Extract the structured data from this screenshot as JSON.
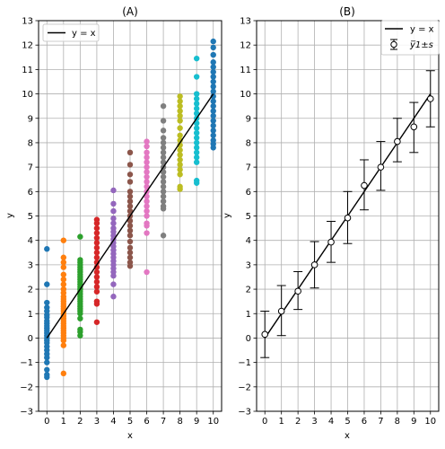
{
  "chart_data": [
    {
      "type": "scatter",
      "title": "(A)",
      "xlabel": "x",
      "ylabel": "y",
      "xlim": [
        -0.5,
        10.5
      ],
      "ylim": [
        -3,
        13
      ],
      "xticks": [
        0,
        1,
        2,
        3,
        4,
        5,
        6,
        7,
        8,
        9,
        10
      ],
      "yticks": [
        -3,
        -2,
        -1,
        0,
        1,
        2,
        3,
        4,
        5,
        6,
        7,
        8,
        9,
        10,
        11,
        12,
        13
      ],
      "grid": true,
      "legend": {
        "placement": "top-left",
        "entries": [
          "y = x"
        ]
      },
      "reference_line": {
        "label": "y = x",
        "x": [
          0,
          10
        ],
        "y": [
          0,
          10
        ],
        "color": "#000000"
      },
      "series": [
        {
          "x": 0,
          "color": "#1f77b4",
          "values": [
            3.65,
            2.2,
            1.45,
            1.25,
            1.1,
            0.95,
            0.85,
            0.7,
            0.6,
            0.5,
            0.4,
            0.3,
            0.2,
            0.1,
            0.0,
            -0.1,
            -0.2,
            -0.35,
            -0.5,
            -0.65,
            -0.8,
            -1.0,
            -1.3,
            -1.5,
            -1.6
          ]
        },
        {
          "x": 1,
          "color": "#ff7f0e",
          "values": [
            4.0,
            3.3,
            3.1,
            2.9,
            2.6,
            2.4,
            2.2,
            2.0,
            1.85,
            1.7,
            1.6,
            1.5,
            1.4,
            1.3,
            1.2,
            1.1,
            1.0,
            0.9,
            0.8,
            0.7,
            0.6,
            0.5,
            0.4,
            0.3,
            0.2,
            0.1,
            0.0,
            -0.1,
            -0.3,
            -1.45
          ]
        },
        {
          "x": 2,
          "color": "#2ca02c",
          "values": [
            4.15,
            3.2,
            3.1,
            3.0,
            2.9,
            2.8,
            2.7,
            2.6,
            2.5,
            2.4,
            2.3,
            2.2,
            2.1,
            2.0,
            1.9,
            1.8,
            1.7,
            1.6,
            1.5,
            1.4,
            1.3,
            1.2,
            1.1,
            1.0,
            0.8,
            0.35,
            0.25,
            0.1
          ]
        },
        {
          "x": 3,
          "color": "#d62728",
          "values": [
            4.85,
            4.7,
            4.5,
            4.3,
            4.1,
            3.9,
            3.7,
            3.5,
            3.3,
            3.1,
            2.9,
            2.7,
            2.5,
            2.3,
            2.1,
            1.9,
            1.5,
            1.4,
            0.65
          ]
        },
        {
          "x": 4,
          "color": "#9467bd",
          "values": [
            6.05,
            5.5,
            5.2,
            4.9,
            4.7,
            4.5,
            4.35,
            4.2,
            4.05,
            3.9,
            3.75,
            3.6,
            3.45,
            3.3,
            3.15,
            3.0,
            2.85,
            2.7,
            2.55,
            2.2,
            1.7
          ]
        },
        {
          "x": 5,
          "color": "#8c564b",
          "values": [
            7.6,
            7.1,
            6.7,
            6.4,
            6.0,
            5.8,
            5.6,
            5.4,
            5.2,
            5.0,
            4.8,
            4.6,
            4.4,
            4.2,
            3.95,
            3.7,
            3.5,
            3.3,
            3.1,
            2.95
          ]
        },
        {
          "x": 6,
          "color": "#e377c2",
          "values": [
            8.05,
            7.85,
            7.6,
            7.4,
            7.2,
            7.0,
            6.8,
            6.6,
            6.4,
            6.2,
            6.0,
            5.8,
            5.6,
            5.4,
            5.2,
            5.0,
            4.7,
            4.6,
            4.3,
            2.7
          ]
        },
        {
          "x": 7,
          "color": "#7f7f7f",
          "values": [
            9.5,
            8.9,
            8.5,
            8.2,
            8.0,
            7.8,
            7.6,
            7.4,
            7.2,
            7.0,
            6.8,
            6.6,
            6.4,
            6.2,
            6.0,
            5.8,
            5.6,
            5.4,
            5.3,
            4.2
          ]
        },
        {
          "x": 8,
          "color": "#bcbd22",
          "values": [
            9.9,
            9.7,
            9.5,
            9.3,
            9.1,
            8.9,
            8.6,
            8.3,
            8.1,
            7.9,
            7.7,
            7.5,
            7.3,
            7.1,
            6.9,
            6.7,
            6.2,
            6.1
          ]
        },
        {
          "x": 9,
          "color": "#17becf",
          "values": [
            11.45,
            10.7,
            10.0,
            9.8,
            9.6,
            9.4,
            9.2,
            9.0,
            8.8,
            8.6,
            8.4,
            8.2,
            8.0,
            7.8,
            7.6,
            7.4,
            7.2,
            6.45,
            6.35
          ]
        },
        {
          "x": 10,
          "color": "#1f77b4",
          "values": [
            12.15,
            11.9,
            11.6,
            11.3,
            11.1,
            10.9,
            10.7,
            10.5,
            10.3,
            10.1,
            9.9,
            9.7,
            9.5,
            9.3,
            9.1,
            8.9,
            8.7,
            8.5,
            8.3,
            8.1,
            7.95,
            7.8
          ]
        }
      ]
    },
    {
      "type": "errorbar",
      "title": "(B)",
      "xlabel": "x",
      "ylabel": "y",
      "xlim": [
        -0.5,
        10.5
      ],
      "ylim": [
        -3,
        13
      ],
      "xticks": [
        0,
        1,
        2,
        3,
        4,
        5,
        6,
        7,
        8,
        9,
        10
      ],
      "yticks": [
        -3,
        -2,
        -1,
        0,
        1,
        2,
        3,
        4,
        5,
        6,
        7,
        8,
        9,
        10,
        11,
        12,
        13
      ],
      "grid": true,
      "legend": {
        "placement": "top-right",
        "entries": [
          "y = x",
          "y̅1±s"
        ]
      },
      "reference_line": {
        "label": "y = x",
        "x": [
          0,
          10
        ],
        "y": [
          0,
          10
        ],
        "color": "#000000"
      },
      "x": [
        0,
        1,
        2,
        3,
        4,
        5,
        6,
        7,
        8,
        9,
        10
      ],
      "mean": [
        0.15,
        1.1,
        1.92,
        3.0,
        3.93,
        4.92,
        6.25,
        7.0,
        8.05,
        8.65,
        9.8
      ],
      "err_low": [
        0.95,
        1.0,
        0.75,
        0.95,
        0.83,
        1.05,
        1.0,
        0.95,
        0.83,
        1.05,
        1.15
      ],
      "err_high": [
        0.95,
        1.05,
        0.8,
        0.95,
        0.85,
        1.08,
        1.05,
        1.05,
        0.95,
        1.0,
        1.15
      ]
    }
  ]
}
